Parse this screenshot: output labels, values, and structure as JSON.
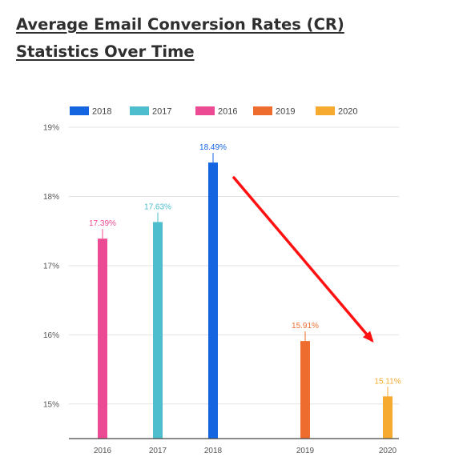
{
  "page": {
    "title_line1": "Average Email Conversion Rates (CR)",
    "title_line2": "Statistics Over Time"
  },
  "colors": {
    "2016": "#ec4a92",
    "2017": "#4ebdcd",
    "2018": "#1565e0",
    "2019": "#ee6c2e",
    "2020": "#f7aa30",
    "arrow": "#ff1111",
    "grid": "#e3e3e3",
    "axis": "#444444",
    "tick_text": "#555555"
  },
  "chart_data": {
    "type": "bar",
    "categories": [
      "2016",
      "2017",
      "2018",
      "2019",
      "2020"
    ],
    "series": [
      {
        "name": "2018",
        "values": [
          null,
          null,
          18.49,
          null,
          null
        ],
        "labels": [
          null,
          null,
          "18.49%",
          null,
          null
        ]
      },
      {
        "name": "2017",
        "values": [
          null,
          17.63,
          null,
          null,
          null
        ],
        "labels": [
          null,
          "17.63%",
          null,
          null,
          null
        ]
      },
      {
        "name": "2016",
        "values": [
          17.39,
          null,
          null,
          null,
          null
        ],
        "labels": [
          "17.39%",
          null,
          null,
          null,
          null
        ]
      },
      {
        "name": "2019",
        "values": [
          null,
          null,
          null,
          15.91,
          null
        ],
        "labels": [
          null,
          null,
          null,
          "15.91%",
          null
        ]
      },
      {
        "name": "2020",
        "values": [
          null,
          null,
          null,
          null,
          15.11
        ],
        "labels": [
          null,
          null,
          null,
          null,
          "15.11%"
        ]
      }
    ],
    "legend_order": [
      "2018",
      "2017",
      "2016",
      "2019",
      "2020"
    ],
    "legend_position": "top",
    "y_ticks": [
      15,
      16,
      17,
      18,
      19
    ],
    "y_tick_labels": [
      "15%",
      "16%",
      "17%",
      "18%",
      "19%"
    ],
    "ylim": [
      14.5,
      19
    ],
    "grid": true,
    "annotation": {
      "type": "arrow",
      "from": "2018",
      "to": "2020",
      "trend": "down"
    }
  }
}
